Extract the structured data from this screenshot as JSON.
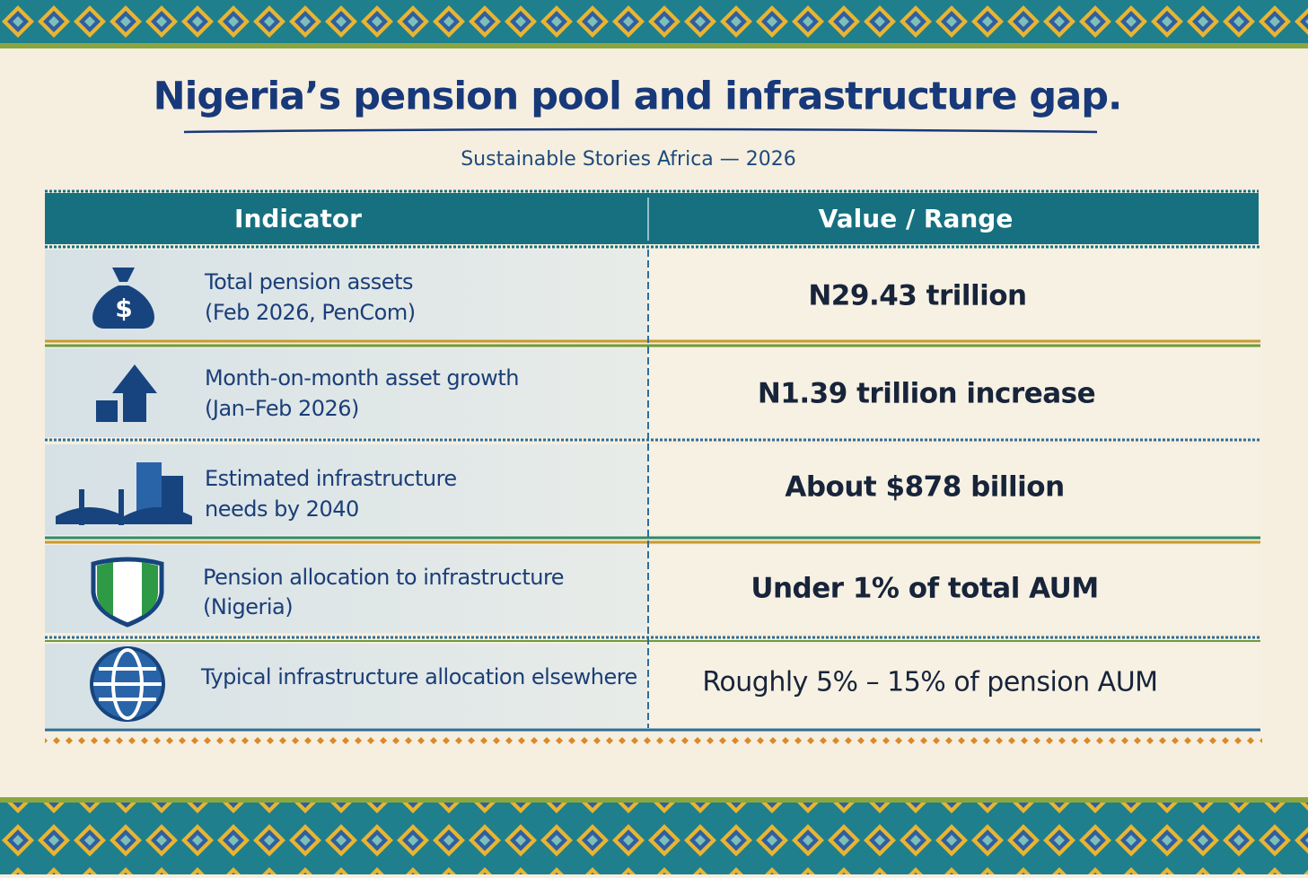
{
  "header": {
    "title": "Nigeria’s pension pool and infrastructure gap.",
    "subtitle": "Sustainable Stories Africa — 2026"
  },
  "table": {
    "columns": [
      "Indicator",
      "Value / Range"
    ],
    "rows": [
      {
        "indicator": [
          "Total pension assets",
          "(Feb 2026, PenCom)"
        ],
        "value": "N29.43 trillion"
      },
      {
        "indicator": [
          "Month-on-month asset growth",
          "(Jan–Feb 2026)"
        ],
        "value": "N1.39 trillion increase"
      },
      {
        "indicator": [
          "Estimated infrastructure",
          "needs by 2040"
        ],
        "value": "About $878 billion"
      },
      {
        "indicator": [
          "Pension allocation to infrastructure",
          "(Nigeria)"
        ],
        "value": "Under 1% of total AUM"
      },
      {
        "indicator": [
          "Typical infrastructure allocation elsewhere"
        ],
        "value": "Roughly 5% – 15% of pension AUM"
      }
    ]
  }
}
